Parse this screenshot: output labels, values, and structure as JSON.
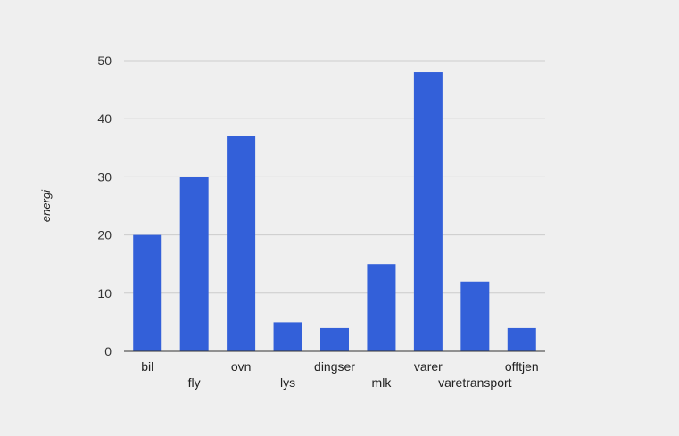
{
  "chart_data": {
    "type": "bar",
    "title": "",
    "xlabel": "",
    "ylabel": "energi",
    "categories": [
      "bil",
      "fly",
      "ovn",
      "lys",
      "dingser",
      "mlk",
      "varer",
      "varetransport",
      "offtjen"
    ],
    "values": [
      20,
      30,
      37,
      5,
      4,
      15,
      48,
      12,
      4
    ],
    "ylim": [
      0,
      50
    ],
    "yticks": [
      0,
      10,
      20,
      30,
      40,
      50
    ],
    "grid": true,
    "legend": "none",
    "bar_color": "#3360d9",
    "grid_color": "#cccccc",
    "axis_color": "#333333"
  }
}
